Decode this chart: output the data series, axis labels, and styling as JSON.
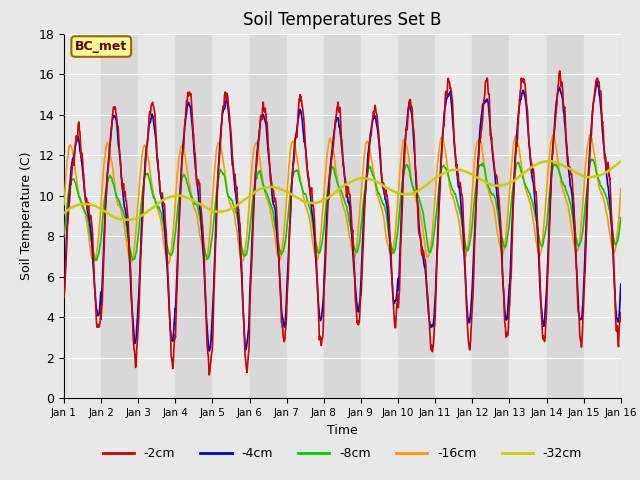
{
  "title": "Soil Temperatures Set B",
  "xlabel": "Time",
  "ylabel": "Soil Temperature (C)",
  "xlim": [
    0,
    15
  ],
  "ylim": [
    0,
    18
  ],
  "yticks": [
    0,
    2,
    4,
    6,
    8,
    10,
    12,
    14,
    16,
    18
  ],
  "xtick_labels": [
    "Jan 1",
    "Jan 2",
    "Jan 3",
    "Jan 4",
    "Jan 5",
    "Jan 6",
    "Jan 7",
    "Jan 8",
    "Jan 9",
    "Jan 10",
    "Jan 11",
    "Jan 12",
    "Jan 13",
    "Jan 14",
    "Jan 15",
    "Jan 16"
  ],
  "series_colors": {
    "-2cm": "#cc0000",
    "-4cm": "#0000cc",
    "-8cm": "#00cc00",
    "-16cm": "#ff9900",
    "-32cm": "#cccc00"
  },
  "series_linewidths": {
    "-2cm": 1.2,
    "-4cm": 1.2,
    "-8cm": 1.2,
    "-16cm": 1.2,
    "-32cm": 1.8
  },
  "annotation_text": "BC_met",
  "annotation_box_color": "#ffff99",
  "annotation_box_edgecolor": "#996600",
  "annotation_text_color": "#660000",
  "fig_bg_color": "#e8e8e8",
  "plot_bg_color": "#e8e8e8",
  "grid_color": "#ffffff",
  "band_color_light": "#e0e0e0",
  "band_color_dark": "#d0d0d0",
  "figsize": [
    6.4,
    4.8
  ],
  "dpi": 100
}
